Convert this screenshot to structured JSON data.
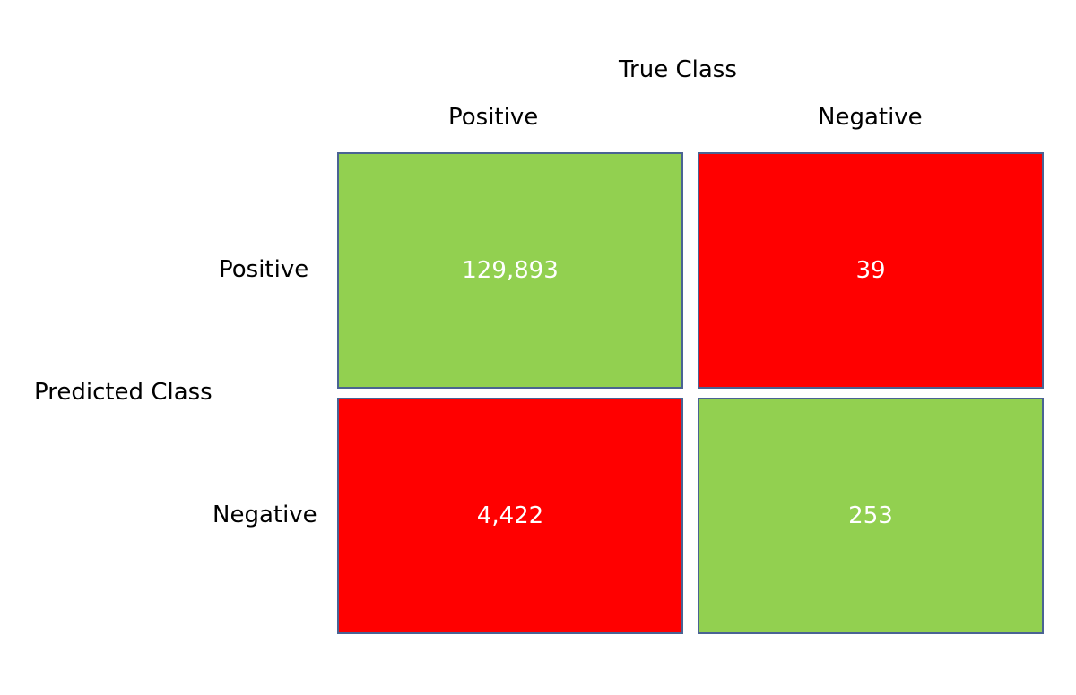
{
  "true_class_label": "True Class",
  "predicted_class_label": "Predicted Class",
  "columns": [
    "Positive",
    "Negative"
  ],
  "rows": [
    "Positive",
    "Negative"
  ],
  "colors": {
    "correct": "#92d050",
    "incorrect": "#ff0000",
    "border": "#4a6393"
  },
  "cells": {
    "pos_pos": "129,893",
    "pos_neg": "39",
    "neg_pos": "4,422",
    "neg_neg": "253"
  }
}
